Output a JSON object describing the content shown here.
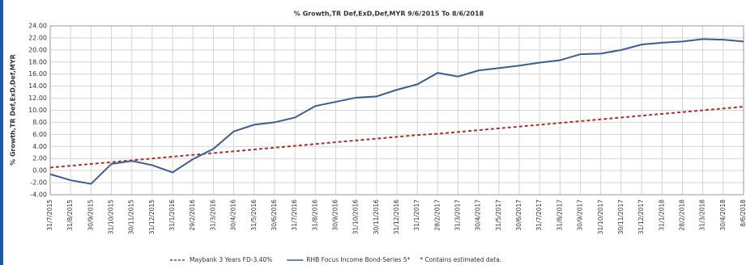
{
  "chart_data": {
    "type": "line",
    "title": "% Growth,TR Def,ExD,Def,MYR 9/6/2015 To 8/6/2018",
    "y_label": "% Growth,TR Def,ExD,Def,MYR",
    "categories": [
      "31/7/2015",
      "31/8/2015",
      "30/9/2015",
      "31/10/2015",
      "30/11/2015",
      "31/12/2015",
      "31/1/2016",
      "29/2/2016",
      "31/3/2016",
      "30/4/2016",
      "31/5/2016",
      "30/6/2016",
      "31/7/2016",
      "31/8/2016",
      "30/9/2016",
      "31/10/2016",
      "30/11/2016",
      "31/12/2016",
      "31/1/2017",
      "28/2/2017",
      "31/3/2017",
      "30/4/2017",
      "31/5/2017",
      "30/6/2017",
      "31/7/2017",
      "31/8/2017",
      "30/9/2017",
      "31/10/2017",
      "30/11/2017",
      "31/12/2017",
      "31/1/2018",
      "28/2/2018",
      "31/3/2018",
      "30/4/2018",
      "8/6/2018"
    ],
    "series": [
      {
        "name": "Maybank 3 Years FD-3.40%",
        "color": "#a5352b",
        "dashed": true,
        "values": [
          0.5,
          0.8,
          1.1,
          1.4,
          1.7,
          2.0,
          2.3,
          2.6,
          2.9,
          3.2,
          3.5,
          3.8,
          4.1,
          4.4,
          4.7,
          5.0,
          5.3,
          5.6,
          5.9,
          6.1,
          6.4,
          6.7,
          7.0,
          7.3,
          7.6,
          7.9,
          8.2,
          8.5,
          8.8,
          9.1,
          9.4,
          9.7,
          10.0,
          10.3,
          10.6
        ]
      },
      {
        "name": "RHB Focus Income Bond-Series 5*",
        "color": "#3d5d8e",
        "dashed": false,
        "values": [
          -0.6,
          -1.6,
          -2.2,
          1.1,
          1.6,
          0.9,
          -0.3,
          1.9,
          3.6,
          6.5,
          7.6,
          8.0,
          8.8,
          10.7,
          11.4,
          12.1,
          12.3,
          13.4,
          14.3,
          16.2,
          15.6,
          16.6,
          17.0,
          17.4,
          17.9,
          18.3,
          19.3,
          19.4,
          20.0,
          20.9,
          21.2,
          21.4,
          21.8,
          21.7,
          21.4
        ]
      }
    ],
    "note": "* Contains estimated data.",
    "ylim": [
      -4,
      24
    ],
    "yticks": [
      {
        "value": -4,
        "label": "-4.00"
      },
      {
        "value": -2,
        "label": "-2.00"
      },
      {
        "value": 0,
        "label": "0.00"
      },
      {
        "value": 2,
        "label": "2.00"
      },
      {
        "value": 4,
        "label": "4.00"
      },
      {
        "value": 6,
        "label": "6.00"
      },
      {
        "value": 8,
        "label": "8.00"
      },
      {
        "value": 10,
        "label": "10.00"
      },
      {
        "value": 12,
        "label": "12.00"
      },
      {
        "value": 14,
        "label": "14.00"
      },
      {
        "value": 16,
        "label": "16.00"
      },
      {
        "value": 18,
        "label": "18.00"
      },
      {
        "value": 20,
        "label": "20.00"
      },
      {
        "value": 22,
        "label": "22.00"
      },
      {
        "value": 24,
        "label": "24.00"
      }
    ],
    "grid": true
  }
}
